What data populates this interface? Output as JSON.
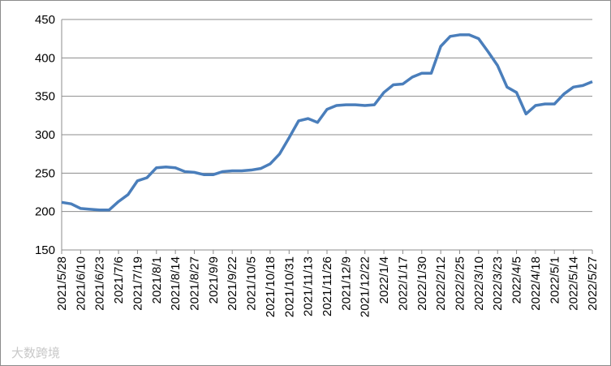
{
  "chart_data": {
    "type": "line",
    "categories": [
      "2021/5/28",
      null,
      "2021/6/10",
      null,
      "2021/6/23",
      null,
      "2021/7/6",
      null,
      "2021/7/19",
      null,
      "2021/8/1",
      null,
      "2021/8/14",
      null,
      "2021/8/27",
      null,
      "2021/9/9",
      null,
      "2021/9/22",
      null,
      "2021/10/5",
      null,
      "2021/10/18",
      null,
      "2021/10/31",
      null,
      "2021/11/13",
      null,
      "2021/11/26",
      null,
      "2021/12/9",
      null,
      "2021/12/22",
      null,
      "2022/1/4",
      null,
      "2022/1/17",
      null,
      "2022/1/30",
      null,
      "2022/2/12",
      null,
      "2022/2/25",
      null,
      "2022/3/10",
      null,
      "2022/3/23",
      null,
      "2022/4/5",
      null,
      "2022/4/18",
      null,
      "2022/5/1",
      null,
      "2022/5/14",
      null,
      "2022/5/27"
    ],
    "series": [
      {
        "color": "#4a7ebb",
        "values": [
          212,
          210,
          204,
          203,
          202,
          202,
          213,
          222,
          240,
          244,
          257,
          258,
          257,
          252,
          251,
          248,
          248,
          252,
          253,
          253,
          254,
          256,
          262,
          275,
          296,
          318,
          321,
          316,
          333,
          338,
          339,
          339,
          338,
          339,
          355,
          365,
          366,
          375,
          380,
          380,
          415,
          428,
          430,
          430,
          425,
          408,
          390,
          362,
          355,
          327,
          338,
          340,
          340,
          353,
          362,
          364,
          369
        ]
      }
    ],
    "ylim": [
      150,
      450
    ],
    "yticks": [
      150,
      200,
      250,
      300,
      350,
      400,
      450
    ],
    "grid": true,
    "watermark": "大数跨境"
  }
}
